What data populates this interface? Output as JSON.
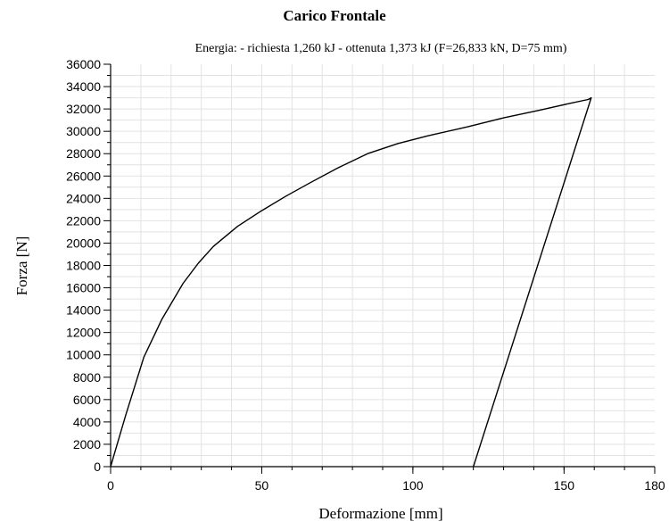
{
  "chart_data": {
    "type": "line",
    "title": "Carico Frontale",
    "subtitle": "Energia: - richiesta 1,260 kJ - ottenuta 1,373 kJ (F=26,833 kN, D=75 mm)",
    "xlabel": "Deformazione [mm]",
    "ylabel": "Forza [N]",
    "xlim": [
      0,
      180
    ],
    "ylim": [
      0,
      36000
    ],
    "xticks": [
      0,
      50,
      100,
      150,
      180
    ],
    "yticks": [
      0,
      2000,
      4000,
      6000,
      8000,
      10000,
      12000,
      14000,
      16000,
      18000,
      20000,
      22000,
      24000,
      26000,
      28000,
      30000,
      32000,
      34000,
      36000
    ],
    "grid": true,
    "series": [
      {
        "x": [
          0,
          5,
          11,
          17,
          24,
          29,
          34,
          42,
          50,
          58,
          66,
          75,
          85,
          95,
          105,
          118,
          130,
          142,
          152,
          158,
          159,
          120
        ],
        "y": [
          0,
          4600,
          9800,
          13200,
          16400,
          18200,
          19700,
          21500,
          22900,
          24200,
          25400,
          26700,
          28000,
          28900,
          29600,
          30400,
          31200,
          31900,
          32500,
          32850,
          33000,
          0
        ]
      }
    ]
  }
}
